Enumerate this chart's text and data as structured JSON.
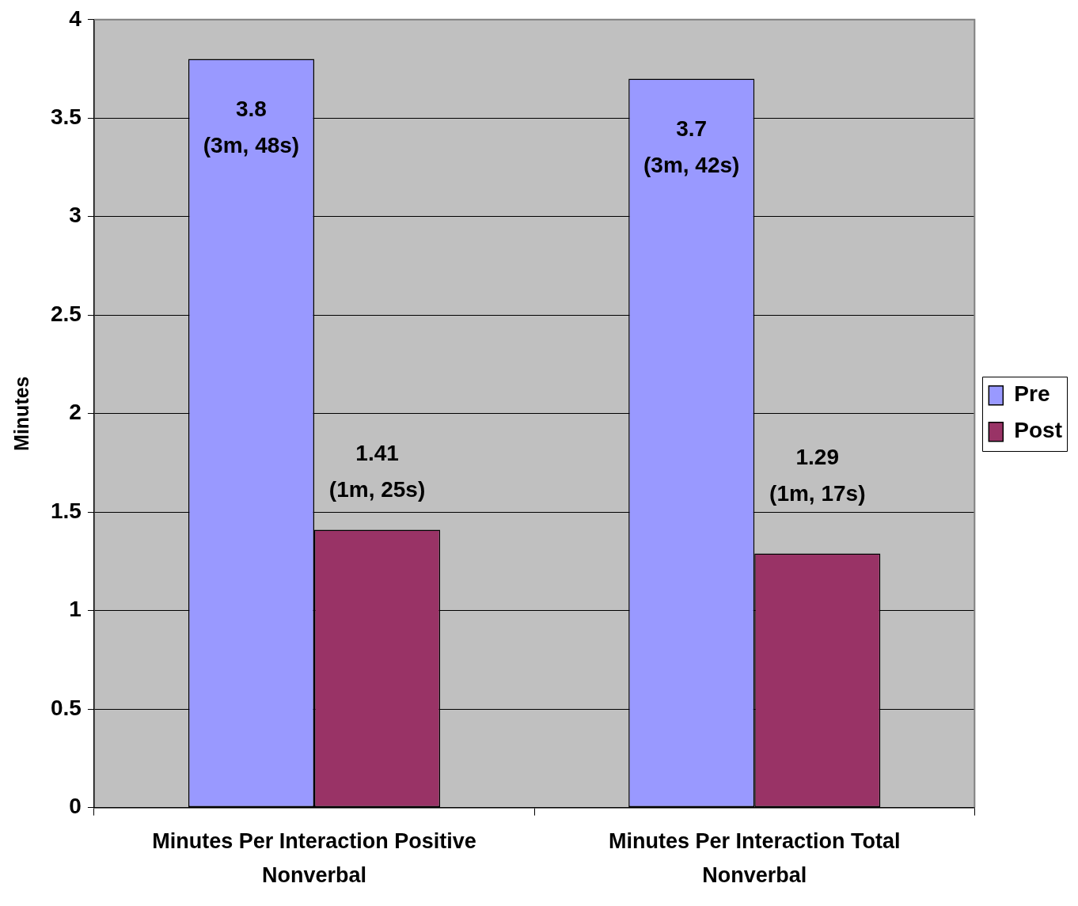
{
  "chart_data": {
    "type": "bar",
    "categories": [
      "Minutes Per Interaction Positive Nonverbal",
      "Minutes Per Interaction Total Nonverbal"
    ],
    "series": [
      {
        "name": "Pre",
        "color": "#9999ff",
        "values": [
          3.8,
          3.7
        ],
        "value_labels": [
          "3.8\n(3m, 48s)",
          "3.7\n(3m, 42s)"
        ]
      },
      {
        "name": "Post",
        "color": "#993366",
        "values": [
          1.41,
          1.29
        ],
        "value_labels": [
          "1.41\n(1m, 25s)",
          "1.29\n(1m, 17s)"
        ]
      }
    ],
    "ylabel": "Minutes",
    "ylim": [
      0,
      4
    ],
    "yticks": [
      0,
      0.5,
      1,
      1.5,
      2,
      2.5,
      3,
      3.5,
      4
    ],
    "grid": "y",
    "legend": "right"
  }
}
